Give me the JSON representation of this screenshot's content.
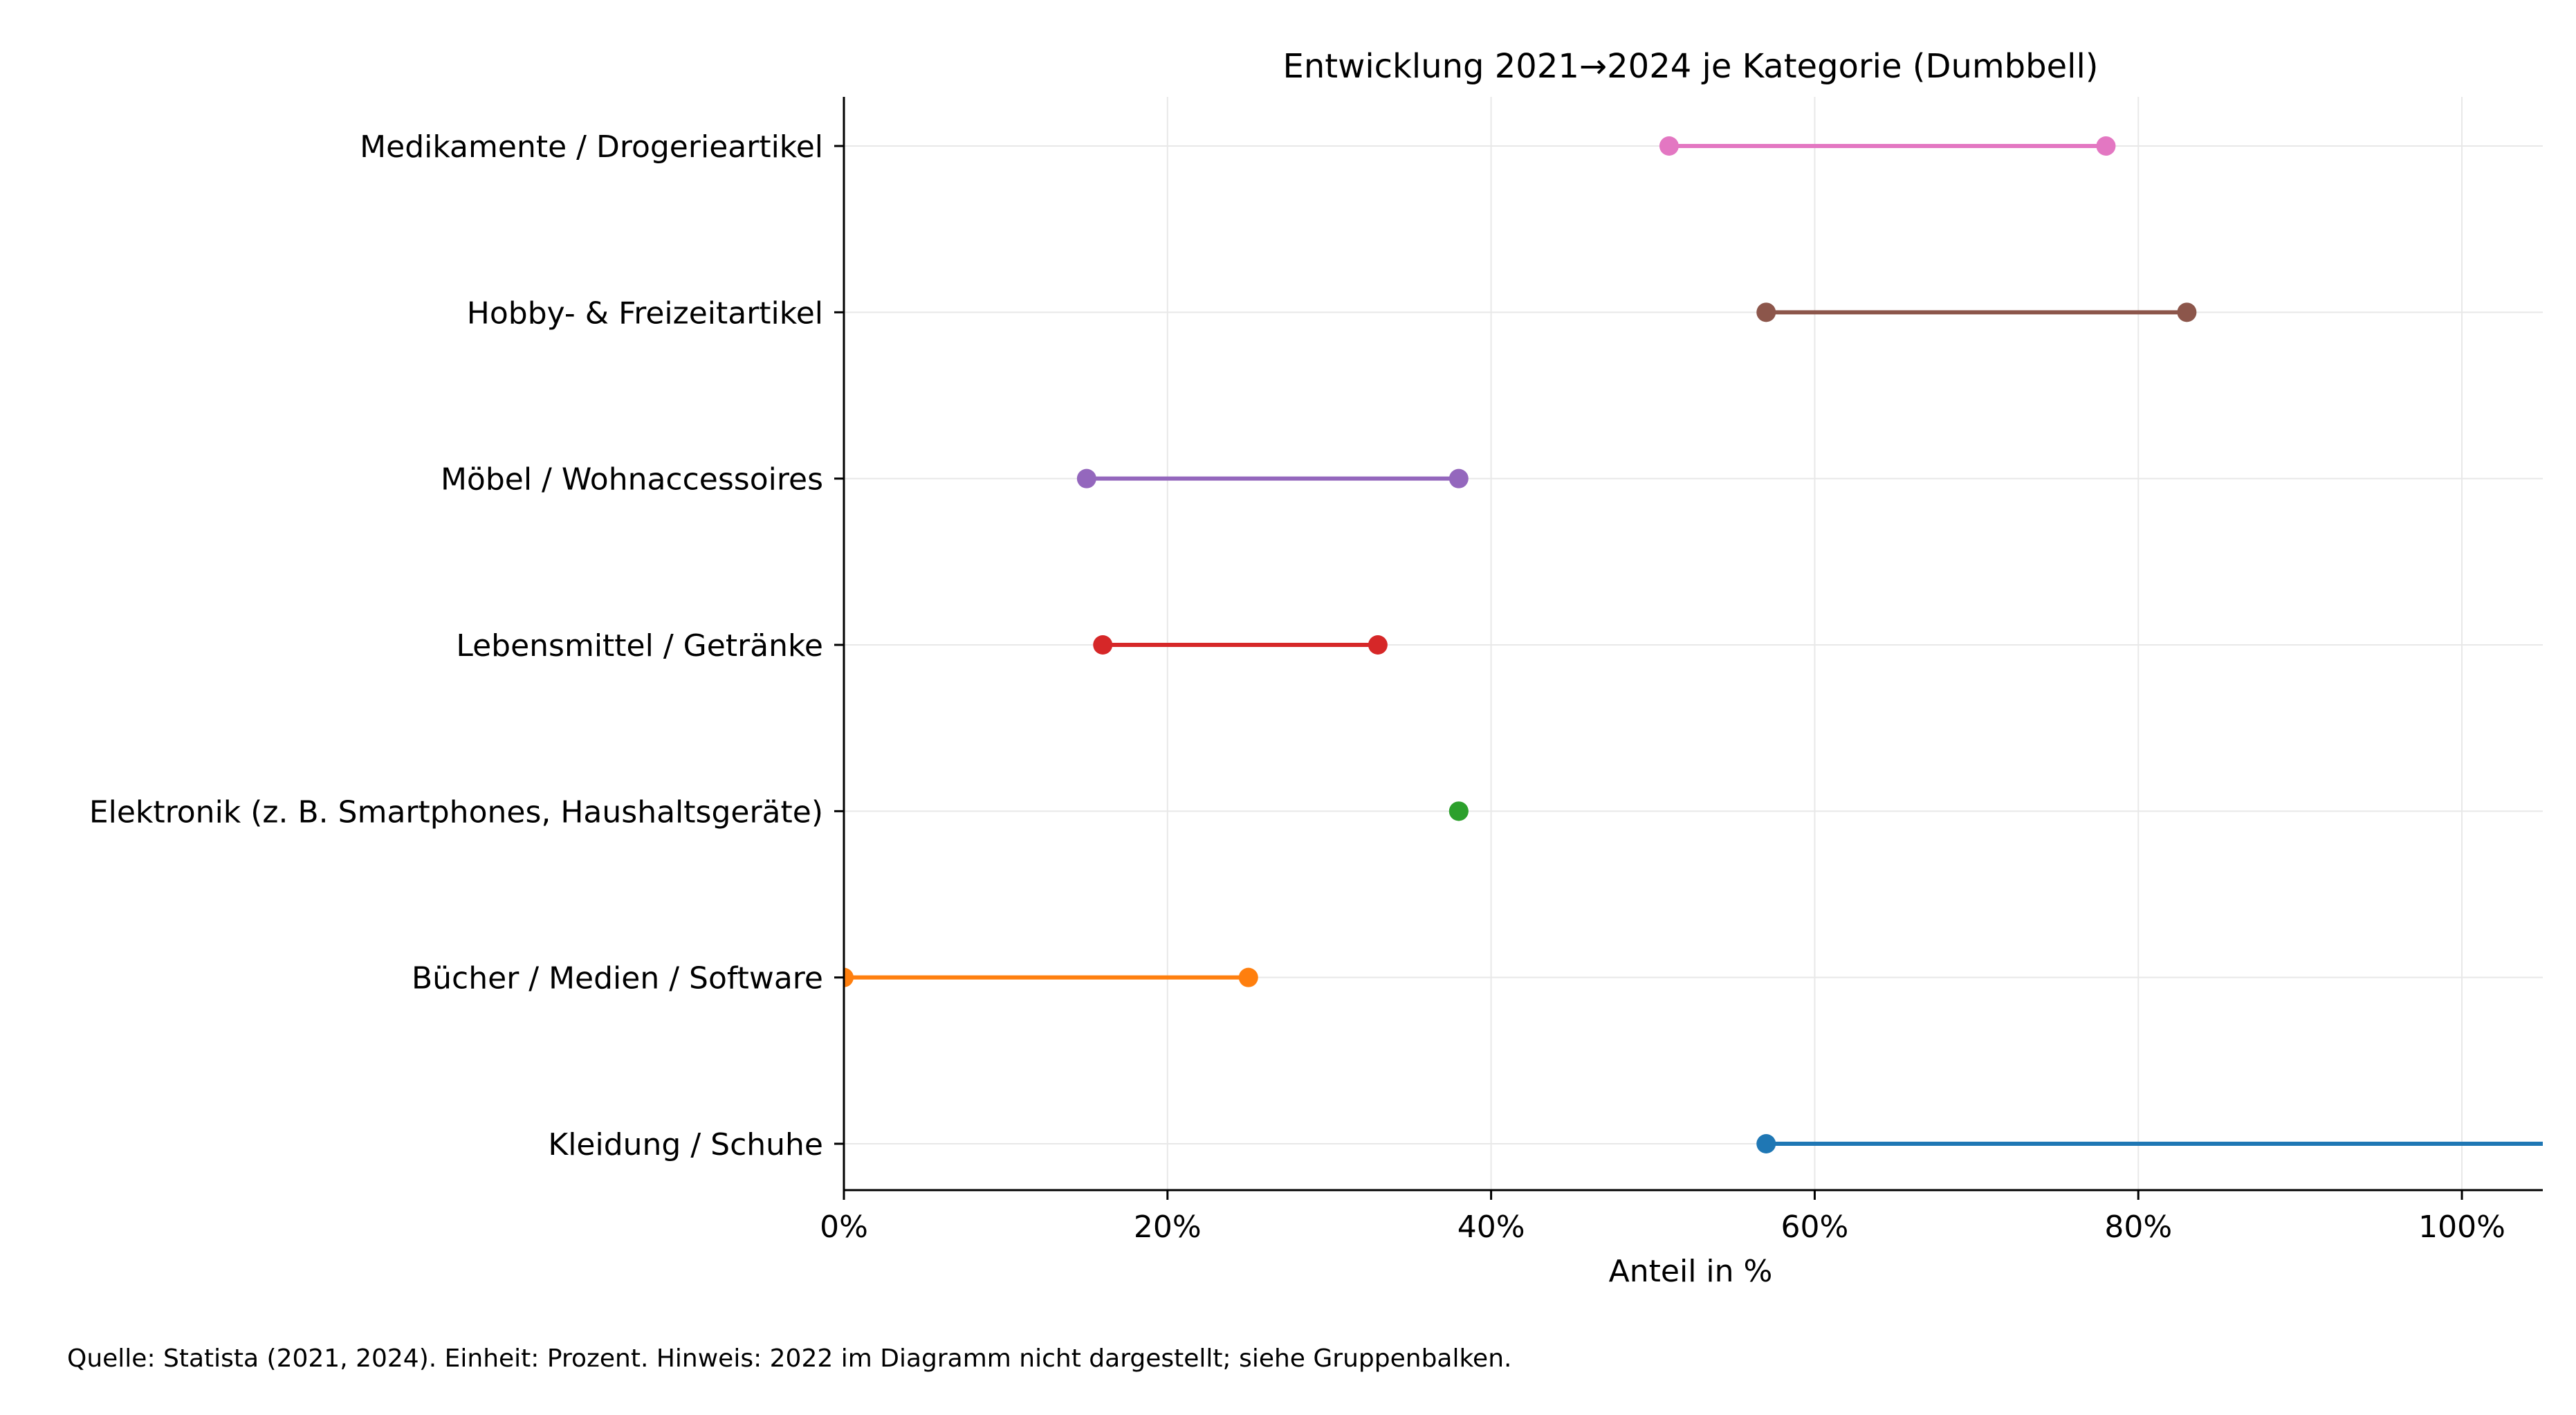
{
  "chart_data": {
    "type": "dumbbell",
    "title": "Entwicklung 2021→2024 je Kategorie (Dumbbell)",
    "xlabel": "Anteil in %",
    "ylabel": "",
    "xlim": [
      0,
      105
    ],
    "xticks": [
      0,
      20,
      40,
      60,
      80,
      100
    ],
    "xtick_labels": [
      "0%",
      "20%",
      "40%",
      "60%",
      "80%",
      "100%"
    ],
    "grid": true,
    "legend": "none",
    "categories": [
      {
        "label": "Kleidung / Schuhe",
        "start": 57,
        "end": 120,
        "color": "#1f77b4"
      },
      {
        "label": "Bücher / Medien / Software",
        "start": 0,
        "end": 25,
        "color": "#ff7f0e"
      },
      {
        "label": "Elektronik (z. B. Smartphones, Haushaltsgeräte)",
        "start": 38,
        "end": 38,
        "color": "#2ca02c"
      },
      {
        "label": "Lebensmittel / Getränke",
        "start": 16,
        "end": 33,
        "color": "#d62728"
      },
      {
        "label": "Möbel / Wohnaccessoires",
        "start": 15,
        "end": 38,
        "color": "#9467bd"
      },
      {
        "label": "Hobby- & Freizeitartikel",
        "start": 57,
        "end": 83,
        "color": "#8c564b"
      },
      {
        "label": "Medikamente / Drogerieartikel",
        "start": 51,
        "end": 78,
        "color": "#e377c2"
      }
    ]
  },
  "footnote": "Quelle: Statista (2021, 2024). Einheit: Prozent. Hinweis: 2022 im Diagramm nicht dargestellt; siehe Gruppenbalken."
}
